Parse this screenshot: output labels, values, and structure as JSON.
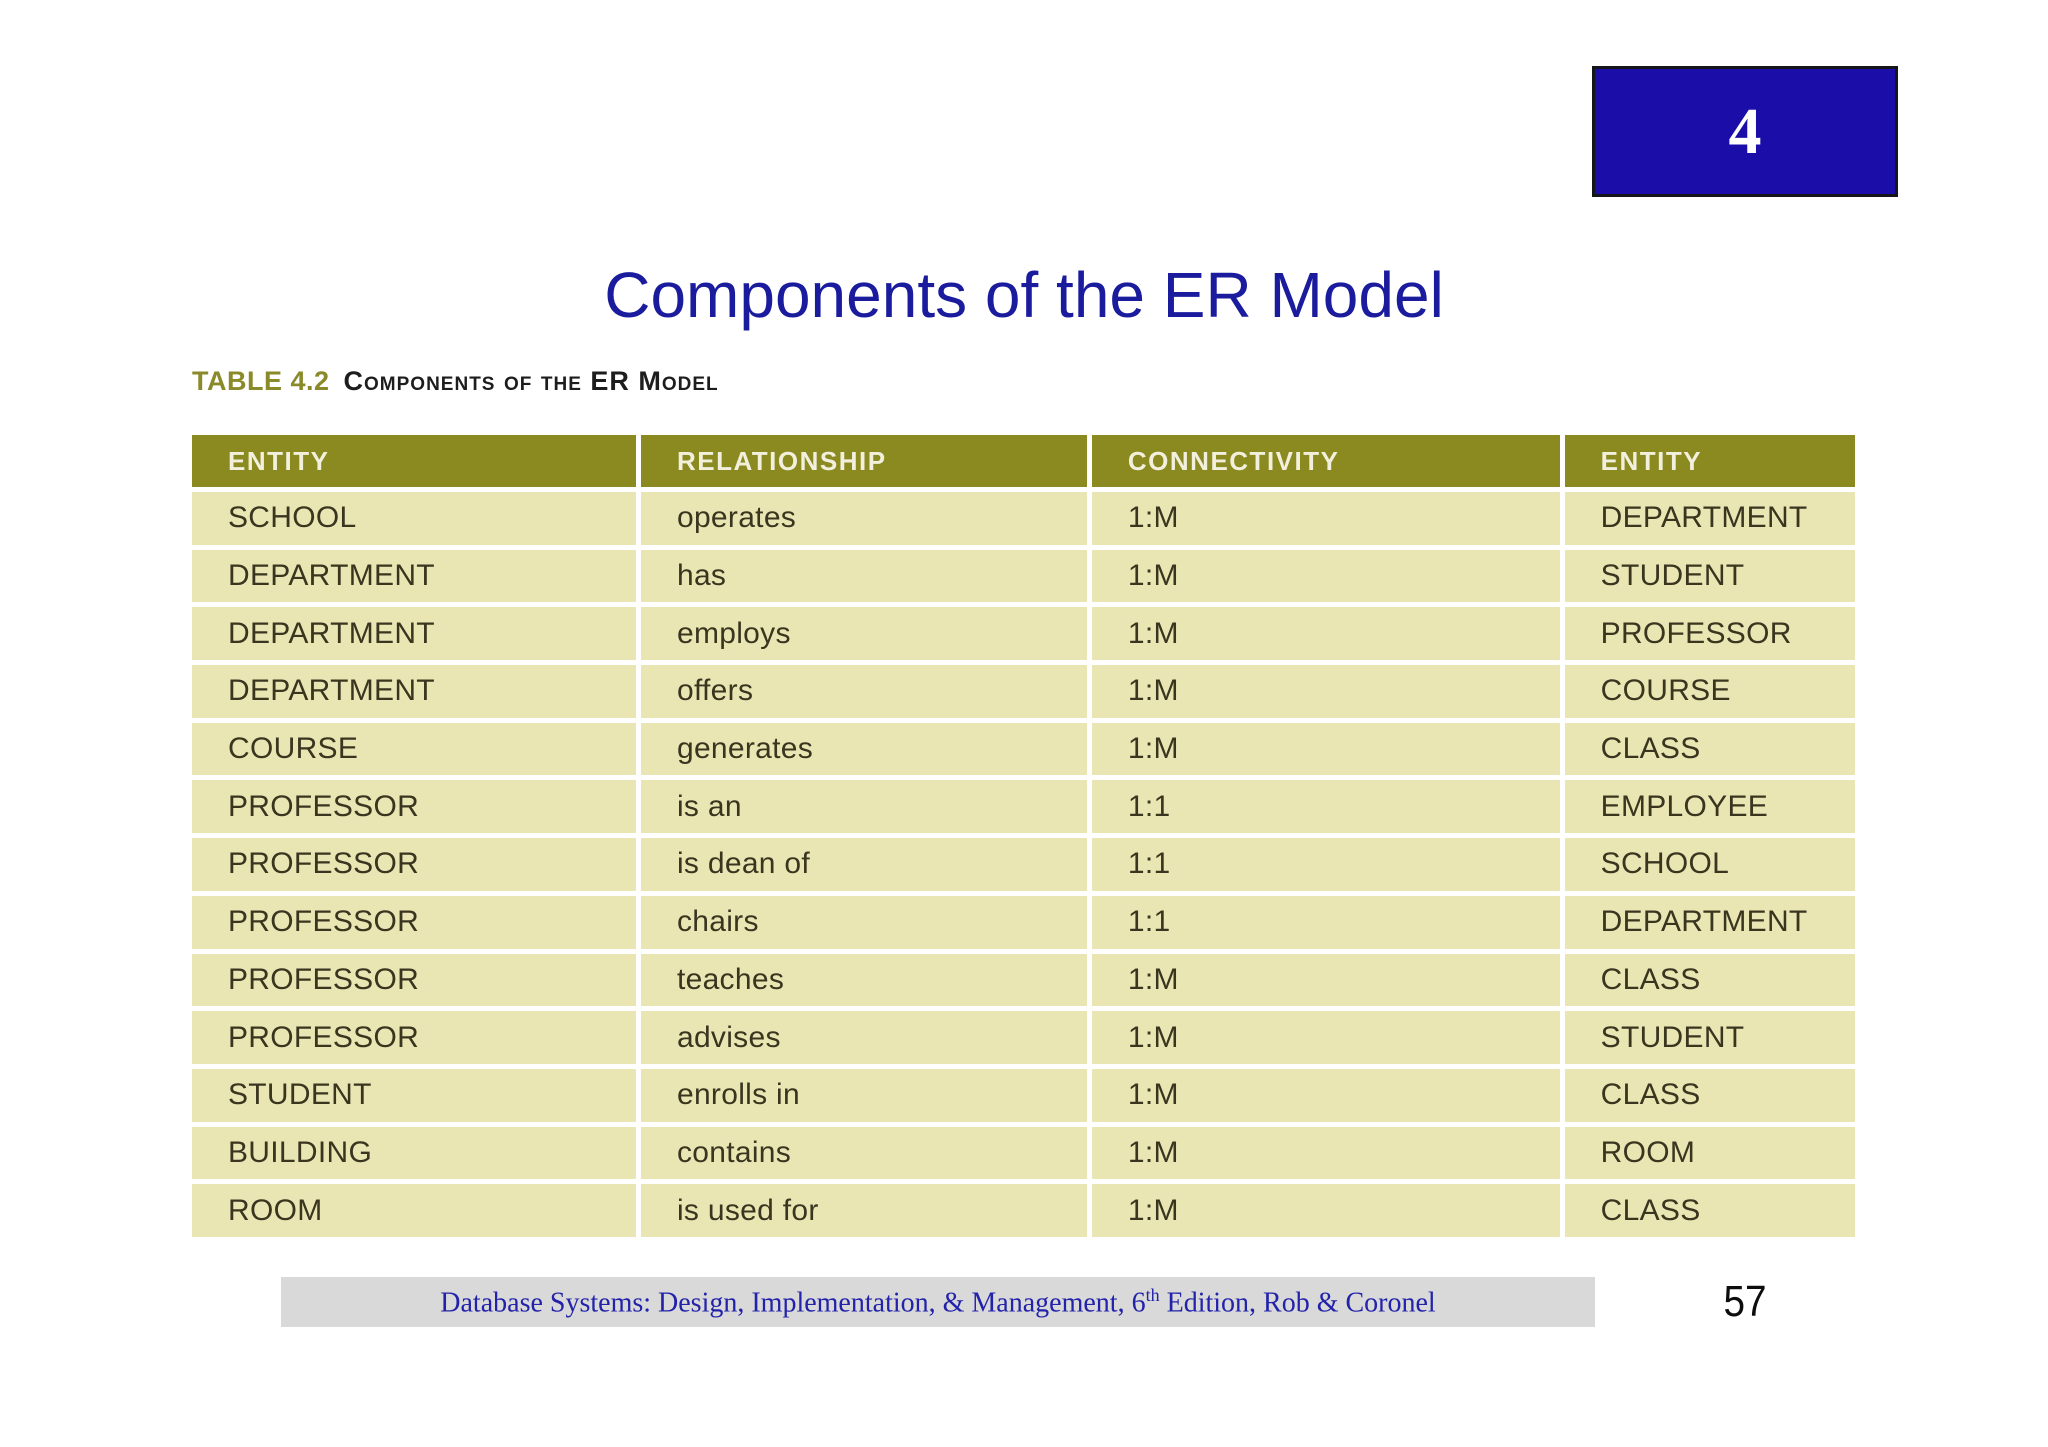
{
  "slide": {
    "badge": {
      "number": "4"
    },
    "title": "Components of the ER Model",
    "caption": {
      "label": "TABLE 4.2",
      "text": "Components of the ER Model"
    },
    "footer": {
      "text_before_sup": "Database Systems: Design, Implementation, & Management, 6",
      "sup": "th",
      "text_after_sup": " Edition, Rob & Coronel"
    },
    "page_number": "57"
  },
  "table": {
    "columns": [
      "ENTITY",
      "RELATIONSHIP",
      "CONNECTIVITY",
      "ENTITY"
    ],
    "rows": [
      [
        "SCHOOL",
        "operates",
        "1:M",
        "DEPARTMENT"
      ],
      [
        "DEPARTMENT",
        "has",
        "1:M",
        "STUDENT"
      ],
      [
        "DEPARTMENT",
        "employs",
        "1:M",
        "PROFESSOR"
      ],
      [
        "DEPARTMENT",
        "offers",
        "1:M",
        "COURSE"
      ],
      [
        "COURSE",
        "generates",
        "1:M",
        "CLASS"
      ],
      [
        "PROFESSOR",
        "is an",
        "1:1",
        "EMPLOYEE"
      ],
      [
        "PROFESSOR",
        "is dean of",
        "1:1",
        "SCHOOL"
      ],
      [
        "PROFESSOR",
        "chairs",
        "1:1",
        "DEPARTMENT"
      ],
      [
        "PROFESSOR",
        "teaches",
        "1:M",
        "CLASS"
      ],
      [
        "PROFESSOR",
        "advises",
        "1:M",
        "STUDENT"
      ],
      [
        "STUDENT",
        "enrolls in",
        "1:M",
        "CLASS"
      ],
      [
        "BUILDING",
        "contains",
        "1:M",
        "ROOM"
      ],
      [
        "ROOM",
        "is used for",
        "1:M",
        "CLASS"
      ]
    ]
  },
  "colors": {
    "badge_blue": "#1b0ea8",
    "title_blue": "#1b1b9e",
    "table_header_olive": "#8a8a20",
    "caption_olive": "#8a8a2a",
    "row_khaki": "#eae6b4",
    "row_text": "#39351f",
    "footer_bar_gray": "#d9d9d9",
    "footer_text_blue": "#2222aa"
  }
}
